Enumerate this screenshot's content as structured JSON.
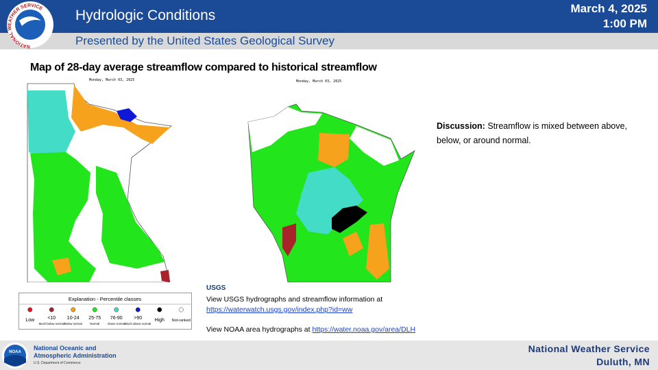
{
  "header": {
    "logo_text": "NATIONAL WEATHER SERVICE",
    "title": "Hydrologic Conditions",
    "subtitle": "Presented by the United States Geological Survey",
    "date": "March 4, 2025",
    "time": "1:00 PM"
  },
  "map_heading": "Map of 28-day average streamflow compared to historical streamflow",
  "maps": [
    {
      "date_label": "Monday, March 03, 2025"
    },
    {
      "date_label": "Monday, March 03, 2025"
    }
  ],
  "legend": {
    "title": "Explanation - Percentile classes",
    "classes": [
      {
        "label": "Low",
        "color": "#e8141b"
      },
      {
        "label": "<10",
        "description": "Much below normal",
        "color": "#a8232a"
      },
      {
        "label": "10-24",
        "description": "Below normal",
        "color": "#f7a21c"
      },
      {
        "label": "25-75",
        "description": "Normal",
        "color": "#22e51b"
      },
      {
        "label": "76-90",
        "description": "Above normal",
        "color": "#43dcc6"
      },
      {
        "label": ">90",
        "description": "Much above normal",
        "color": "#1018d8"
      },
      {
        "label": "High",
        "color": "#000000"
      },
      {
        "label": "Not-ranked",
        "color": "#ffffff"
      }
    ]
  },
  "discussion": {
    "label": "Discussion:",
    "text": "Streamflow is mixed between above, below, or around normal."
  },
  "links": {
    "usgs_logo": "USGS",
    "usgs_text": "View USGS hydrographs and streamflow information at",
    "usgs_url": "https://waterwatch.usgs.gov/index.php?id=ww",
    "noaa_text": "View NOAA  area hydrographs at",
    "noaa_url": "https://water.noaa.gov/area/DLH"
  },
  "footer": {
    "noaa_badge": "NOAA",
    "noaa_line1": "National Oceanic and",
    "noaa_line2": "Atmospheric Administration",
    "noaa_line3": "U.S. Department of Commerce",
    "office": "National Weather Service",
    "location": "Duluth, MN"
  }
}
